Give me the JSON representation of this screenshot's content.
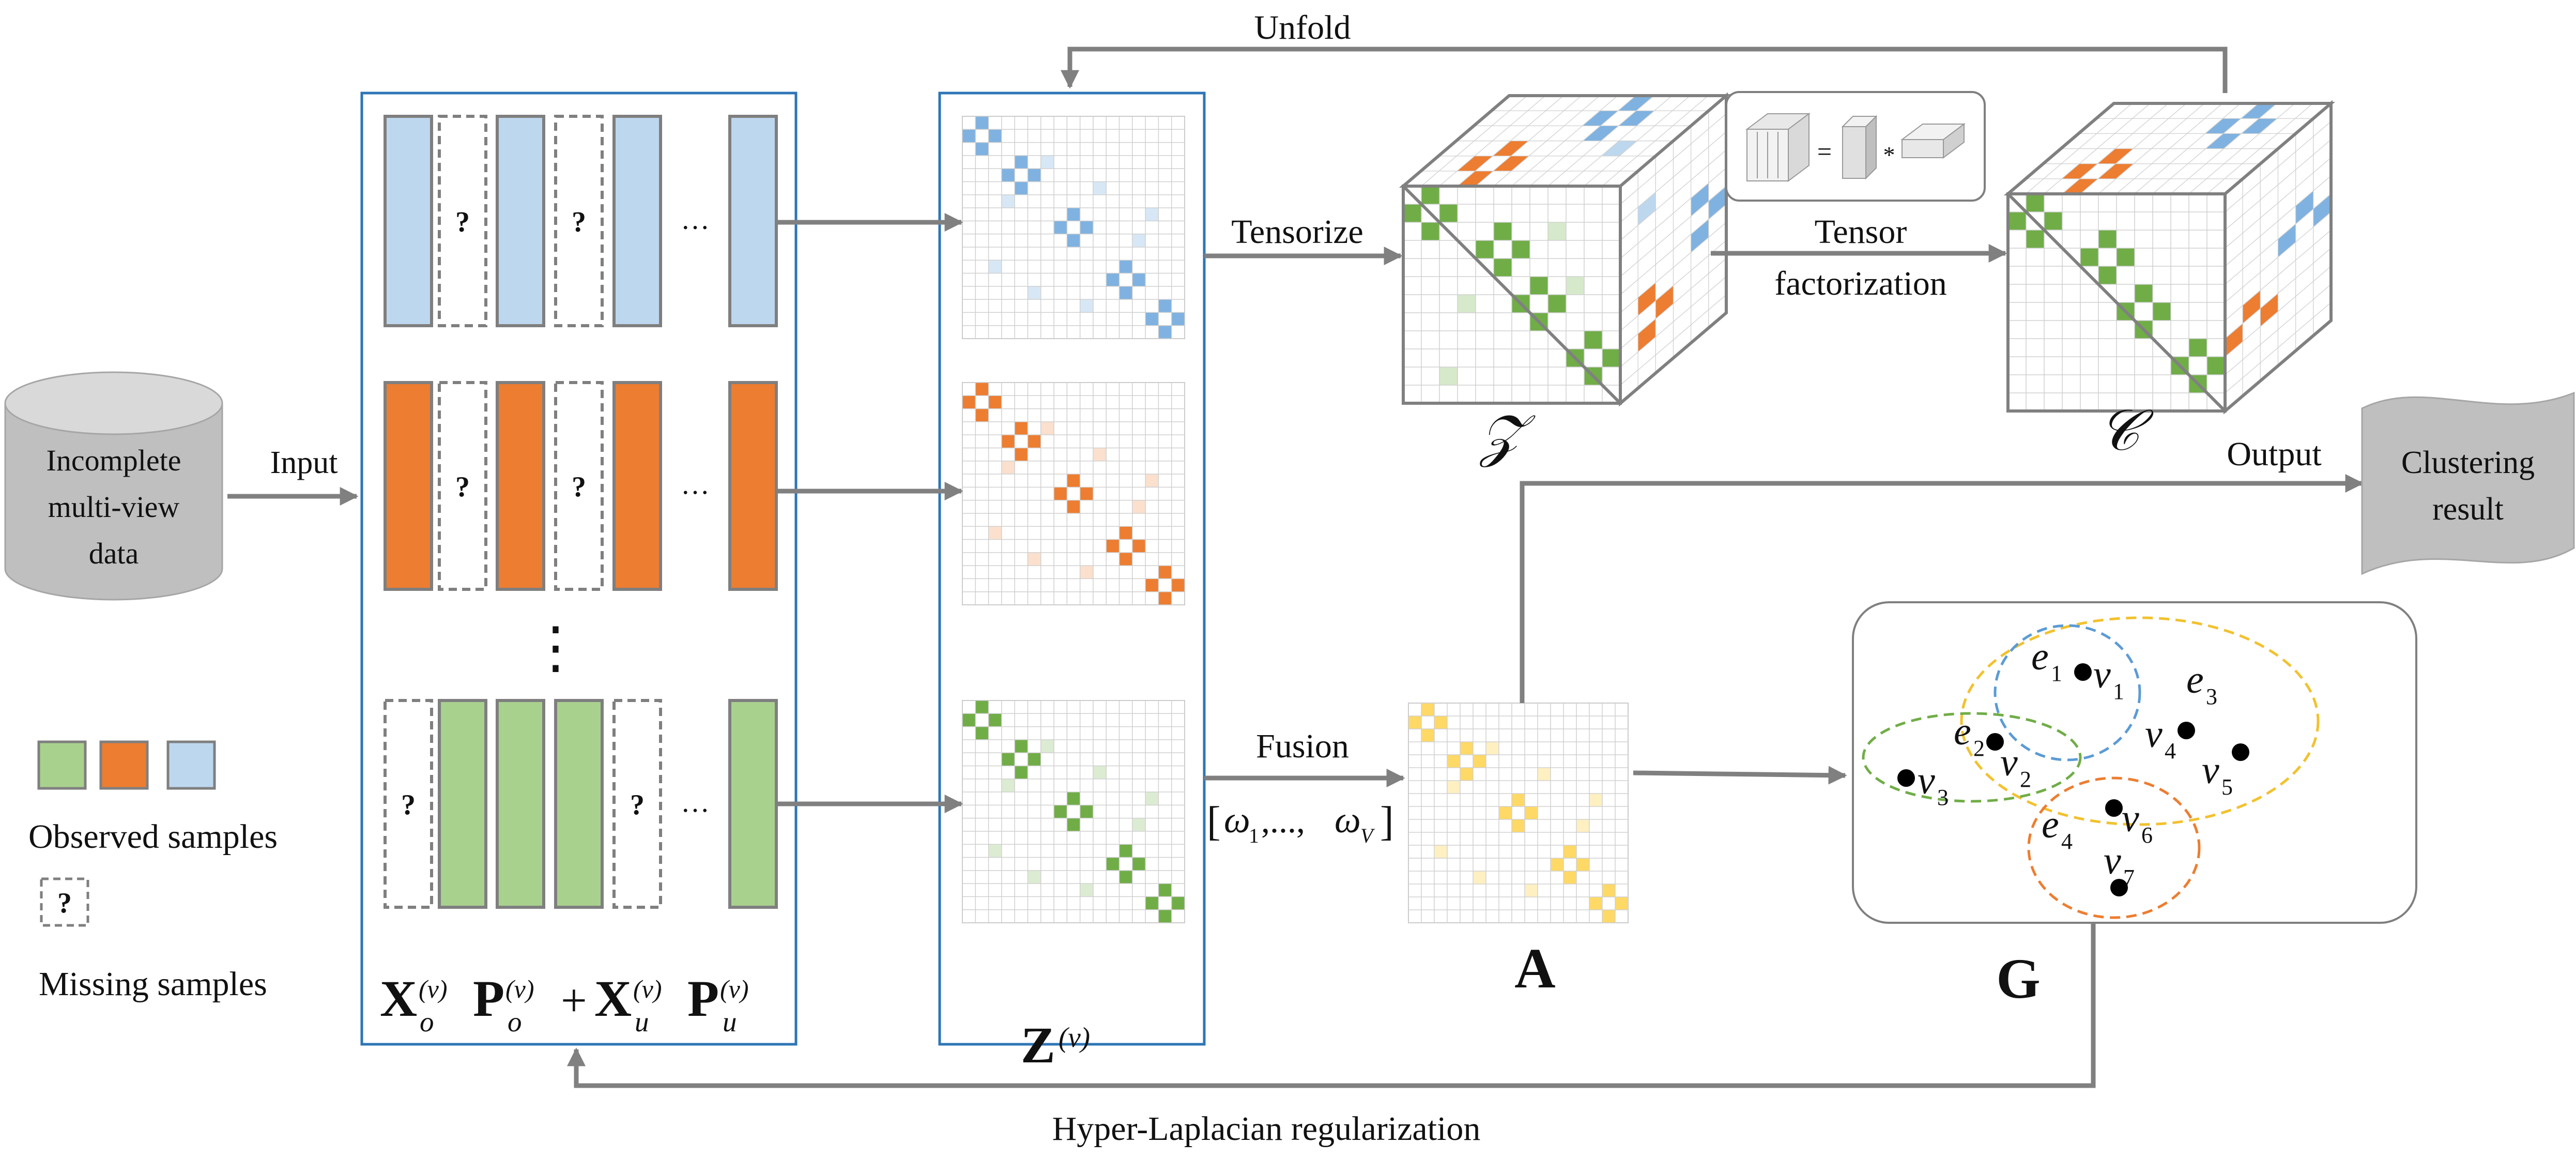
{
  "colors": {
    "blue": "#BDD7EE",
    "orange": "#ED7D31",
    "green": "#A9D18E",
    "yellow_light": "#FFE699",
    "box_border": "#2E75B6",
    "arrow": "#808080",
    "column_border": "#7F7F7F",
    "cylinder": "#BFBFBF",
    "dashed_blue": "#5B9BD5",
    "dashed_yellow": "#F2C12E",
    "dashed_green": "#70AD47",
    "dashed_orange": "#ED7D31"
  },
  "labels": {
    "input_db": [
      "Incomplete",
      "multi-view",
      "data"
    ],
    "input_arrow": "Input",
    "question_mark": "?",
    "ellipsis": "…",
    "vdots": "⋮",
    "observed": "Observed samples",
    "missing": "Missing samples",
    "unfold": "Unfold",
    "tensorize": "Tensorize",
    "tensor_factorization": [
      "Tensor",
      "factorization"
    ],
    "output": "Output",
    "clustering": [
      "Clustering",
      "result"
    ],
    "fusion": "Fusion",
    "hyper_laplacian": "Hyper-Laplacian regularization",
    "tensor_Z": "𝒵",
    "tensor_C": "𝒞",
    "A": "A",
    "G": "G"
  },
  "formulas": {
    "x_bold": "X",
    "p_bold": "P",
    "plus": "+",
    "sub_o": "o",
    "sub_u": "u",
    "sup_v": "(v)",
    "z_bold": "Z",
    "omega_open": "[",
    "omega_1": "ω",
    "omega_1_sub": "1",
    "omega_dots": ",...,",
    "omega_V": "ω",
    "omega_V_sub": "V",
    "omega_close": "]"
  },
  "hypergraph": {
    "edges": [
      {
        "name": "e",
        "sub": "1"
      },
      {
        "name": "e",
        "sub": "2"
      },
      {
        "name": "e",
        "sub": "3"
      },
      {
        "name": "e",
        "sub": "4"
      }
    ],
    "vertices": [
      {
        "name": "v",
        "sub": "1"
      },
      {
        "name": "v",
        "sub": "2"
      },
      {
        "name": "v",
        "sub": "3"
      },
      {
        "name": "v",
        "sub": "4"
      },
      {
        "name": "v",
        "sub": "5"
      },
      {
        "name": "v",
        "sub": "6"
      },
      {
        "name": "v",
        "sub": "7"
      }
    ]
  },
  "legend_mini": {
    "equals": "=",
    "star": "*"
  }
}
